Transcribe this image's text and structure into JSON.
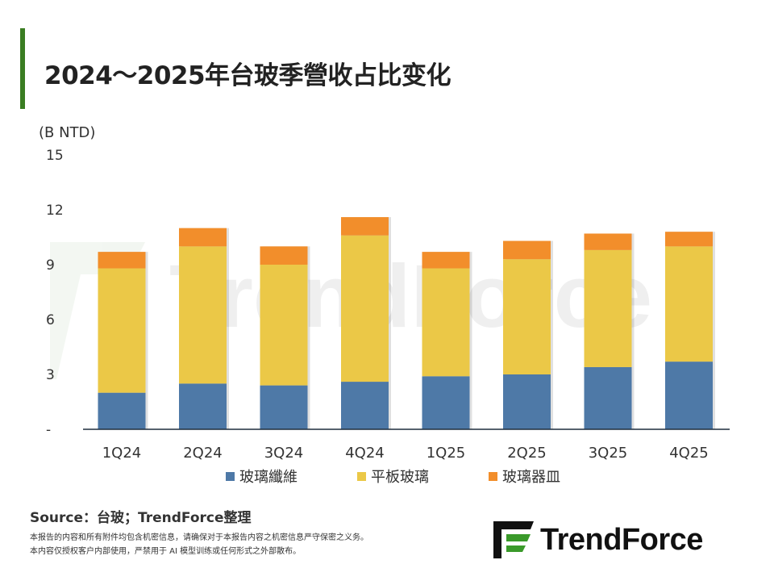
{
  "title": "2024～2025年台玻季營收占比变化",
  "source": "Source：台玻；TrendForce整理",
  "notes": [
    "本报告的内容和所有附件均包含机密信息，请确保对于本报告内容之机密信息严守保密之义务。",
    "本内容仅授权客户内部使用，严禁用于 AI 模型训练或任何形式之外部散布。"
  ],
  "logo": "TrendForce",
  "watermark": "TrendForce",
  "chart_data": {
    "type": "bar",
    "stacked": true,
    "ylabel": "(B NTD)",
    "ylim": [
      0,
      15
    ],
    "yticks": [
      0,
      3,
      6,
      9,
      12,
      15
    ],
    "ytick_labels": [
      "-",
      "3",
      "6",
      "9",
      "12",
      "15"
    ],
    "grid": false,
    "legend_position": "bottom",
    "categories": [
      "1Q24",
      "2Q24",
      "3Q24",
      "4Q24",
      "1Q25",
      "2Q25",
      "3Q25",
      "4Q25"
    ],
    "series": [
      {
        "name": "玻璃纖維",
        "color": "#4e79a7",
        "values": [
          2.0,
          2.5,
          2.4,
          2.6,
          2.9,
          3.0,
          3.4,
          3.7
        ]
      },
      {
        "name": "平板玻璃",
        "color": "#ebc847",
        "values": [
          6.8,
          7.5,
          6.6,
          8.0,
          5.9,
          6.3,
          6.4,
          6.3
        ]
      },
      {
        "name": "玻璃器皿",
        "color": "#f28e2b",
        "values": [
          0.9,
          1.0,
          1.0,
          1.0,
          0.9,
          1.0,
          0.9,
          0.8
        ]
      }
    ]
  }
}
